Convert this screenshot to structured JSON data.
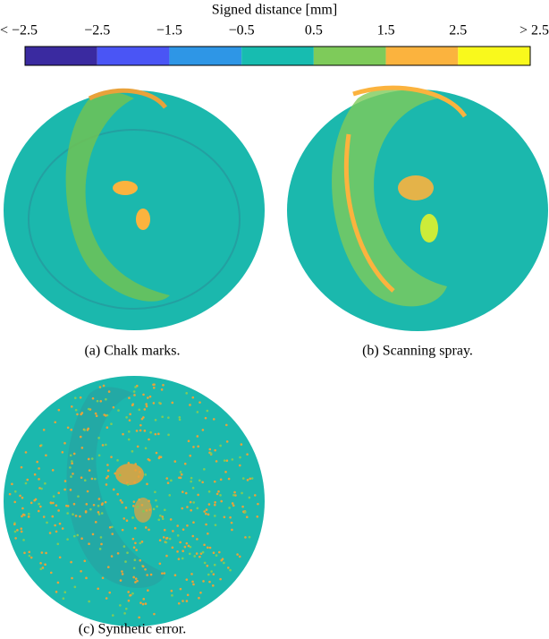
{
  "colorbar": {
    "title": "Signed distance [mm]",
    "labels": [
      "< −2.5",
      "−2.5",
      "−1.5",
      "−0.5",
      "0.5",
      "1.5",
      "2.5",
      "> 2.5"
    ],
    "colors": [
      "#3a2aa0",
      "#4a55f5",
      "#2e96e6",
      "#17bcb0",
      "#7ecb5a",
      "#fbb33e",
      "#f9f91c"
    ]
  },
  "panels": [
    {
      "caption": "(a) Chalk marks."
    },
    {
      "caption": "(b) Scanning spray."
    },
    {
      "caption": "(c) Synthetic error."
    }
  ]
}
